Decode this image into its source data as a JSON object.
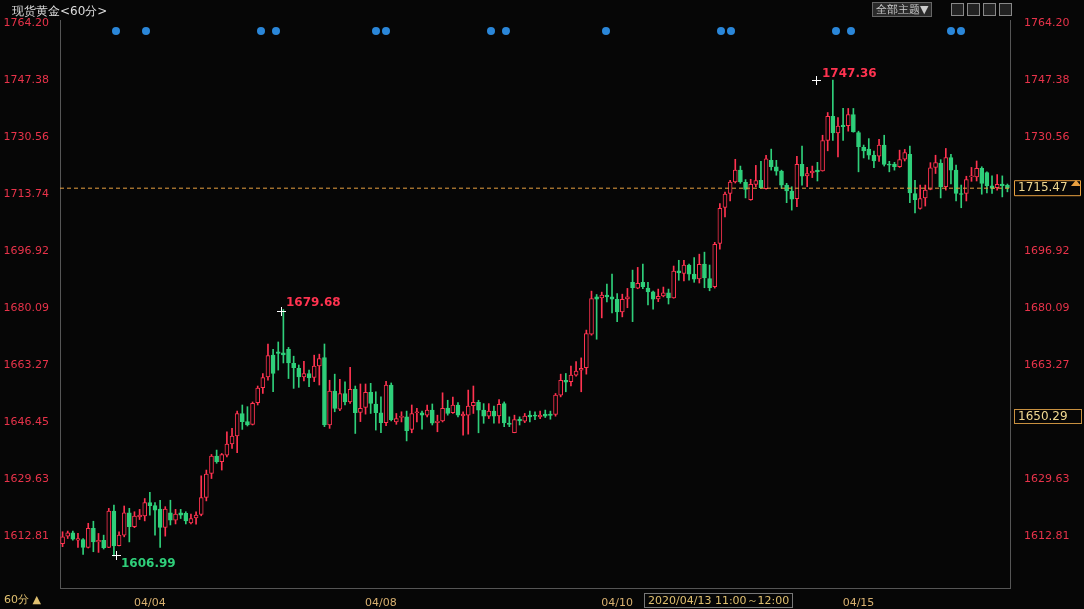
{
  "chart_data": {
    "type": "candlestick",
    "title": "现货黄金<60分>",
    "categories": [
      null,
      null,
      null,
      null,
      null,
      null,
      null,
      null,
      null,
      null,
      null,
      null,
      null,
      null,
      null,
      null,
      null,
      "04/04",
      null,
      null,
      null,
      null,
      null,
      null,
      null,
      null,
      null,
      null,
      null,
      null,
      null,
      null,
      null,
      null,
      null,
      null,
      null,
      null,
      null,
      null,
      null,
      null,
      null,
      null,
      null,
      null,
      null,
      null,
      null,
      null,
      null,
      null,
      null,
      null,
      null,
      null,
      null,
      null,
      null,
      null,
      null,
      null,
      "04/08",
      null,
      null,
      null,
      null,
      null,
      null,
      null,
      null,
      null,
      null,
      null,
      null,
      null,
      null,
      null,
      null,
      null,
      null,
      null,
      null,
      null,
      null,
      null,
      null,
      null,
      null,
      null,
      null,
      null,
      null,
      null,
      null,
      null,
      null,
      null,
      null,
      null,
      null,
      null,
      null,
      null,
      null,
      null,
      null,
      null,
      "04/10",
      null,
      null,
      null,
      null,
      null,
      null,
      null,
      null,
      null,
      null,
      null,
      null,
      null,
      null,
      null,
      null,
      null,
      null,
      null,
      null,
      null,
      null,
      null,
      null,
      null,
      null,
      null,
      null,
      null,
      null,
      null,
      null,
      null,
      null,
      null,
      null,
      null,
      null,
      null,
      null,
      null,
      null,
      null,
      null,
      null,
      null,
      "04/15",
      null,
      null,
      null,
      null,
      null,
      null,
      null,
      null,
      null,
      null,
      null,
      null,
      null,
      null,
      null,
      null,
      null,
      null,
      null,
      null,
      null,
      null,
      null,
      null,
      null,
      null,
      null,
      null,
      null
    ],
    "ohlc": [
      [
        1610.6,
        1614.1,
        1609.7,
        1612.6
      ],
      [
        1612.8,
        1614.3,
        1612.1,
        1613.8
      ],
      [
        1613.8,
        1614.3,
        1611.6,
        1611.9
      ],
      [
        1611.6,
        1613.6,
        1609.5,
        1612.1
      ],
      [
        1611.8,
        1612.1,
        1607.4,
        1609.5
      ],
      [
        1609.5,
        1616.6,
        1609.3,
        1615.1
      ],
      [
        1615.1,
        1617.2,
        1608.2,
        1611.1
      ],
      [
        1611.1,
        1613.6,
        1608.0,
        1611.6
      ],
      [
        1611.6,
        1613.1,
        1609.0,
        1609.4
      ],
      [
        1609.5,
        1621.0,
        1609.4,
        1620.2
      ],
      [
        1620.2,
        1622.0,
        1606.99,
        1609.9
      ],
      [
        1610.0,
        1614.1,
        1609.9,
        1613.1
      ],
      [
        1613.1,
        1621.7,
        1612.6,
        1619.7
      ],
      [
        1619.7,
        1621.0,
        1611.1,
        1615.6
      ],
      [
        1615.6,
        1620.0,
        1615.3,
        1618.7
      ],
      [
        1618.5,
        1620.7,
        1617.7,
        1619.0
      ],
      [
        1618.8,
        1623.9,
        1617.3,
        1622.7
      ],
      [
        1622.7,
        1625.7,
        1619.0,
        1621.8
      ],
      [
        1621.8,
        1622.7,
        1613.1,
        1620.5
      ],
      [
        1620.8,
        1623.4,
        1609.5,
        1615.4
      ],
      [
        1615.4,
        1621.5,
        1612.8,
        1620.8
      ],
      [
        1619.7,
        1623.4,
        1616.1,
        1617.5
      ],
      [
        1617.5,
        1620.7,
        1616.4,
        1619.3
      ],
      [
        1619.7,
        1620.7,
        1618.0,
        1619.0
      ],
      [
        1619.5,
        1620.0,
        1616.4,
        1617.3
      ],
      [
        1616.7,
        1619.3,
        1616.4,
        1618.0
      ],
      [
        1618.2,
        1620.0,
        1616.3,
        1619.0
      ],
      [
        1619.2,
        1630.6,
        1618.8,
        1624.2
      ],
      [
        1624.2,
        1632.3,
        1623.2,
        1631.1
      ],
      [
        1631.3,
        1636.9,
        1629.8,
        1636.4
      ],
      [
        1636.4,
        1638.2,
        1634.3,
        1634.8
      ],
      [
        1634.8,
        1637.2,
        1632.3,
        1636.9
      ],
      [
        1636.7,
        1643.6,
        1636.2,
        1640.0
      ],
      [
        1640.0,
        1644.6,
        1638.7,
        1642.3
      ],
      [
        1642.4,
        1649.7,
        1637.4,
        1649.0
      ],
      [
        1649.0,
        1651.5,
        1644.3,
        1646.6
      ],
      [
        1646.6,
        1651.0,
        1645.3,
        1645.6
      ],
      [
        1645.8,
        1652.4,
        1645.6,
        1652.0
      ],
      [
        1652.2,
        1657.1,
        1651.5,
        1656.5
      ],
      [
        1656.6,
        1660.8,
        1654.9,
        1659.6
      ],
      [
        1659.8,
        1669.5,
        1658.8,
        1666.1
      ],
      [
        1666.2,
        1667.9,
        1655.4,
        1660.8
      ],
      [
        1667.2,
        1670.1,
        1661.8,
        1666.7
      ],
      [
        1666.9,
        1679.68,
        1663.9,
        1666.3
      ],
      [
        1667.9,
        1668.5,
        1659.3,
        1663.9
      ],
      [
        1663.8,
        1665.9,
        1656.4,
        1662.5
      ],
      [
        1662.3,
        1663.3,
        1656.7,
        1659.8
      ],
      [
        1659.8,
        1664.4,
        1658.6,
        1660.8
      ],
      [
        1660.8,
        1661.8,
        1656.9,
        1659.5
      ],
      [
        1659.6,
        1666.2,
        1658.4,
        1663.0
      ],
      [
        1663.0,
        1666.5,
        1657.4,
        1665.2
      ],
      [
        1665.5,
        1669.5,
        1645.1,
        1645.6
      ],
      [
        1645.6,
        1658.8,
        1644.6,
        1655.6
      ],
      [
        1655.6,
        1660.6,
        1649.5,
        1650.5
      ],
      [
        1650.3,
        1659.1,
        1649.8,
        1654.9
      ],
      [
        1654.9,
        1658.3,
        1651.5,
        1652.4
      ],
      [
        1652.4,
        1662.6,
        1652.0,
        1656.1
      ],
      [
        1656.2,
        1657.1,
        1643.1,
        1649.2
      ],
      [
        1649.3,
        1657.7,
        1646.6,
        1650.5
      ],
      [
        1650.8,
        1657.7,
        1648.8,
        1655.2
      ],
      [
        1655.2,
        1657.9,
        1649.0,
        1652.0
      ],
      [
        1651.8,
        1655.4,
        1644.1,
        1649.2
      ],
      [
        1649.2,
        1653.9,
        1643.3,
        1646.3
      ],
      [
        1646.3,
        1658.5,
        1645.4,
        1657.4
      ],
      [
        1657.4,
        1658.0,
        1646.8,
        1647.2
      ],
      [
        1646.5,
        1649.0,
        1645.8,
        1647.5
      ],
      [
        1647.8,
        1649.5,
        1646.5,
        1648.2
      ],
      [
        1648.0,
        1649.7,
        1640.9,
        1643.9
      ],
      [
        1644.3,
        1651.5,
        1643.3,
        1649.0
      ],
      [
        1649.2,
        1650.5,
        1646.5,
        1649.4
      ],
      [
        1649.2,
        1649.7,
        1644.4,
        1648.5
      ],
      [
        1648.5,
        1651.5,
        1648.0,
        1650.0
      ],
      [
        1650.0,
        1651.8,
        1645.6,
        1646.1
      ],
      [
        1646.3,
        1648.5,
        1643.6,
        1646.7
      ],
      [
        1646.8,
        1655.1,
        1646.5,
        1650.5
      ],
      [
        1650.6,
        1652.9,
        1648.5,
        1649.0
      ],
      [
        1649.2,
        1653.8,
        1649.0,
        1651.5
      ],
      [
        1651.5,
        1652.2,
        1648.0,
        1648.5
      ],
      [
        1648.3,
        1649.5,
        1642.6,
        1648.8
      ],
      [
        1648.5,
        1655.9,
        1642.9,
        1651.2
      ],
      [
        1651.3,
        1657.1,
        1649.0,
        1652.3
      ],
      [
        1652.3,
        1652.9,
        1643.3,
        1650.0
      ],
      [
        1650.0,
        1651.9,
        1646.1,
        1648.2
      ],
      [
        1648.2,
        1651.9,
        1647.5,
        1649.7
      ],
      [
        1649.7,
        1651.2,
        1646.1,
        1648.2
      ],
      [
        1648.3,
        1653.1,
        1646.1,
        1651.7
      ],
      [
        1651.9,
        1652.4,
        1645.1,
        1646.2
      ],
      [
        1646.2,
        1648.0,
        1645.1,
        1645.8
      ],
      [
        1643.3,
        1648.5,
        1643.3,
        1647.2
      ],
      [
        1647.3,
        1648.0,
        1645.6,
        1646.8
      ],
      [
        1646.7,
        1649.0,
        1646.3,
        1648.2
      ],
      [
        1648.5,
        1649.7,
        1646.5,
        1648.0
      ],
      [
        1648.5,
        1649.5,
        1647.2,
        1648.2
      ],
      [
        1648.0,
        1649.7,
        1647.5,
        1648.5
      ],
      [
        1648.8,
        1650.0,
        1647.8,
        1648.2
      ],
      [
        1648.8,
        1649.7,
        1647.3,
        1648.4
      ],
      [
        1648.7,
        1654.9,
        1648.2,
        1654.4
      ],
      [
        1654.4,
        1660.6,
        1653.9,
        1658.8
      ],
      [
        1658.8,
        1660.8,
        1655.4,
        1658.2
      ],
      [
        1658.4,
        1663.0,
        1657.1,
        1660.3
      ],
      [
        1660.3,
        1664.3,
        1660.0,
        1661.5
      ],
      [
        1661.8,
        1665.4,
        1655.4,
        1662.3
      ],
      [
        1662.5,
        1673.6,
        1660.6,
        1672.6
      ],
      [
        1672.4,
        1685.1,
        1672.1,
        1682.9
      ],
      [
        1683.4,
        1684.1,
        1670.9,
        1682.7
      ],
      [
        1683.1,
        1684.8,
        1677.2,
        1683.9
      ],
      [
        1683.9,
        1687.2,
        1681.9,
        1683.4
      ],
      [
        1683.4,
        1690.1,
        1678.7,
        1682.7
      ],
      [
        1682.7,
        1684.4,
        1676.1,
        1679.0
      ],
      [
        1679.0,
        1684.2,
        1677.5,
        1682.7
      ],
      [
        1682.8,
        1685.9,
        1680.2,
        1683.4
      ],
      [
        1687.7,
        1691.3,
        1676.1,
        1686.1
      ],
      [
        1686.0,
        1692.1,
        1685.8,
        1687.4
      ],
      [
        1687.7,
        1693.1,
        1685.8,
        1686.4
      ],
      [
        1686.0,
        1687.7,
        1681.0,
        1684.9
      ],
      [
        1684.9,
        1685.1,
        1679.8,
        1682.7
      ],
      [
        1682.8,
        1685.7,
        1682.0,
        1683.6
      ],
      [
        1683.7,
        1686.3,
        1683.4,
        1684.6
      ],
      [
        1684.6,
        1685.7,
        1681.3,
        1683.1
      ],
      [
        1683.1,
        1692.5,
        1683.0,
        1691.0
      ],
      [
        1691.1,
        1694.2,
        1688.3,
        1690.5
      ],
      [
        1690.3,
        1694.2,
        1688.1,
        1692.8
      ],
      [
        1692.8,
        1693.1,
        1688.3,
        1690.1
      ],
      [
        1690.1,
        1695.0,
        1687.7,
        1688.6
      ],
      [
        1688.7,
        1696.0,
        1687.5,
        1693.0
      ],
      [
        1693.1,
        1696.6,
        1686.1,
        1689.0
      ],
      [
        1688.8,
        1692.8,
        1685.2,
        1686.1
      ],
      [
        1686.4,
        1699.5,
        1686.0,
        1698.9
      ],
      [
        1699.2,
        1710.9,
        1697.5,
        1709.5
      ],
      [
        1709.8,
        1714.3,
        1707.0,
        1713.7
      ],
      [
        1713.9,
        1717.8,
        1711.7,
        1717.3
      ],
      [
        1717.3,
        1724.0,
        1717.0,
        1720.8
      ],
      [
        1720.8,
        1722.0,
        1716.9,
        1717.3
      ],
      [
        1717.2,
        1718.0,
        1712.6,
        1715.1
      ],
      [
        1712.1,
        1718.1,
        1711.9,
        1716.6
      ],
      [
        1716.6,
        1722.2,
        1715.9,
        1717.7
      ],
      [
        1717.8,
        1723.4,
        1715.4,
        1715.6
      ],
      [
        1715.3,
        1725.2,
        1715.2,
        1724.1
      ],
      [
        1723.7,
        1727.0,
        1720.8,
        1721.8
      ],
      [
        1721.8,
        1723.7,
        1719.3,
        1720.5
      ],
      [
        1720.5,
        1720.8,
        1715.4,
        1716.4
      ],
      [
        1716.4,
        1716.9,
        1711.2,
        1714.7
      ],
      [
        1714.6,
        1715.9,
        1709.0,
        1712.2
      ],
      [
        1712.4,
        1724.9,
        1710.0,
        1722.5
      ],
      [
        1722.5,
        1727.9,
        1716.4,
        1719.0
      ],
      [
        1719.1,
        1721.6,
        1715.9,
        1719.8
      ],
      [
        1720.0,
        1722.0,
        1718.6,
        1720.5
      ],
      [
        1720.8,
        1723.1,
        1717.6,
        1720.3
      ],
      [
        1720.6,
        1731.1,
        1720.5,
        1729.5
      ],
      [
        1729.6,
        1737.8,
        1726.5,
        1736.7
      ],
      [
        1736.7,
        1747.36,
        1729.6,
        1731.8
      ],
      [
        1731.8,
        1736.3,
        1724.7,
        1733.8
      ],
      [
        1734.1,
        1739.0,
        1729.6,
        1733.6
      ],
      [
        1733.9,
        1739.0,
        1732.3,
        1737.2
      ],
      [
        1737.2,
        1739.0,
        1732.0,
        1732.1
      ],
      [
        1731.9,
        1732.3,
        1720.3,
        1727.7
      ],
      [
        1727.5,
        1728.2,
        1724.4,
        1726.5
      ],
      [
        1727.0,
        1730.1,
        1724.0,
        1725.2
      ],
      [
        1725.2,
        1726.4,
        1721.5,
        1723.5
      ],
      [
        1724.9,
        1729.9,
        1723.4,
        1728.2
      ],
      [
        1728.2,
        1731.1,
        1722.0,
        1722.5
      ],
      [
        1722.6,
        1723.4,
        1720.3,
        1722.3
      ],
      [
        1722.6,
        1723.1,
        1720.8,
        1721.8
      ],
      [
        1721.8,
        1726.7,
        1721.6,
        1723.9
      ],
      [
        1724.0,
        1726.9,
        1723.5,
        1726.0
      ],
      [
        1725.5,
        1727.9,
        1711.2,
        1714.1
      ],
      [
        1713.9,
        1717.8,
        1708.2,
        1712.1
      ],
      [
        1709.5,
        1716.4,
        1709.3,
        1712.4
      ],
      [
        1712.6,
        1716.4,
        1710.2,
        1714.9
      ],
      [
        1715.1,
        1723.0,
        1715.0,
        1721.5
      ],
      [
        1721.6,
        1725.2,
        1719.8,
        1723.0
      ],
      [
        1722.9,
        1723.9,
        1712.6,
        1715.9
      ],
      [
        1715.9,
        1727.2,
        1714.9,
        1724.5
      ],
      [
        1724.5,
        1725.5,
        1716.7,
        1720.8
      ],
      [
        1720.8,
        1722.3,
        1711.7,
        1713.9
      ],
      [
        1713.9,
        1716.4,
        1709.7,
        1713.6
      ],
      [
        1713.9,
        1719.0,
        1711.7,
        1718.0
      ],
      [
        1718.8,
        1721.6,
        1717.5,
        1719.1
      ],
      [
        1718.8,
        1723.5,
        1717.6,
        1721.3
      ],
      [
        1721.3,
        1721.8,
        1713.7,
        1716.9
      ],
      [
        1720.1,
        1720.3,
        1714.1,
        1716.2
      ],
      [
        1716.2,
        1719.1,
        1713.9,
        1715.4
      ],
      [
        1715.6,
        1719.5,
        1714.9,
        1716.6
      ],
      [
        1716.7,
        1719.1,
        1712.9,
        1716.2
      ],
      [
        1716.4,
        1716.7,
        1714.4,
        1715.47
      ]
    ],
    "colors": [
      "#ff3350",
      "#ff3350",
      "#2fcf7a",
      "#ff3350",
      "#2fcf7a",
      "#ff3350",
      "#2fcf7a",
      "#ff3350",
      "#2fcf7a",
      "#ff3350",
      "#2fcf7a",
      "#ff3350",
      "#ff3350",
      "#2fcf7a",
      "#ff3350",
      "#ff3350",
      "#ff3350",
      "#2fcf7a",
      "#2fcf7a",
      "#2fcf7a",
      "#ff3350",
      "#2fcf7a",
      "#ff3350",
      "#2fcf7a",
      "#2fcf7a",
      "#ff3350",
      "#ff3350",
      "#ff3350",
      "#ff3350",
      "#ff3350",
      "#2fcf7a",
      "#ff3350",
      "#ff3350",
      "#ff3350",
      "#ff3350",
      "#2fcf7a",
      "#2fcf7a",
      "#ff3350",
      "#ff3350",
      "#ff3350",
      "#ff3350",
      "#2fcf7a",
      "#2fcf7a",
      "#2fcf7a",
      "#2fcf7a",
      "#2fcf7a",
      "#2fcf7a",
      "#ff3350",
      "#2fcf7a",
      "#ff3350",
      "#ff3350",
      "#2fcf7a",
      "#ff3350",
      "#2fcf7a",
      "#ff3350",
      "#2fcf7a",
      "#ff3350",
      "#2fcf7a",
      "#ff3350",
      "#ff3350",
      "#2fcf7a",
      "#2fcf7a",
      "#2fcf7a",
      "#ff3350",
      "#2fcf7a",
      "#ff3350",
      "#ff3350",
      "#2fcf7a",
      "#ff3350",
      "#ff3350",
      "#2fcf7a",
      "#ff3350",
      "#2fcf7a",
      "#ff3350",
      "#ff3350",
      "#2fcf7a",
      "#ff3350",
      "#2fcf7a",
      "#ff3350",
      "#ff3350",
      "#ff3350",
      "#2fcf7a",
      "#2fcf7a",
      "#ff3350",
      "#2fcf7a",
      "#ff3350",
      "#2fcf7a",
      "#2fcf7a",
      "#ff3350",
      "#2fcf7a",
      "#ff3350",
      "#2fcf7a",
      "#2fcf7a",
      "#ff3350",
      "#2fcf7a",
      "#2fcf7a",
      "#ff3350",
      "#ff3350",
      "#2fcf7a",
      "#ff3350",
      "#ff3350",
      "#ff3350",
      "#ff3350",
      "#ff3350",
      "#2fcf7a",
      "#ff3350",
      "#2fcf7a",
      "#2fcf7a",
      "#2fcf7a",
      "#ff3350",
      "#ff3350",
      "#2fcf7a",
      "#ff3350",
      "#2fcf7a",
      "#2fcf7a",
      "#2fcf7a",
      "#ff3350",
      "#ff3350",
      "#2fcf7a",
      "#ff3350",
      "#2fcf7a",
      "#ff3350",
      "#2fcf7a",
      "#2fcf7a",
      "#ff3350",
      "#2fcf7a",
      "#2fcf7a",
      "#ff3350",
      "#ff3350",
      "#ff3350",
      "#ff3350",
      "#ff3350",
      "#2fcf7a",
      "#2fcf7a",
      "#ff3350",
      "#ff3350",
      "#2fcf7a",
      "#ff3350",
      "#2fcf7a",
      "#2fcf7a",
      "#2fcf7a",
      "#2fcf7a",
      "#2fcf7a",
      "#ff3350",
      "#2fcf7a",
      "#ff3350",
      "#ff3350",
      "#2fcf7a",
      "#ff3350",
      "#ff3350",
      "#2fcf7a",
      "#ff3350",
      "#2fcf7a",
      "#ff3350",
      "#2fcf7a",
      "#2fcf7a",
      "#2fcf7a",
      "#2fcf7a",
      "#2fcf7a",
      "#ff3350",
      "#2fcf7a",
      "#2fcf7a",
      "#2fcf7a",
      "#ff3350",
      "#ff3350",
      "#2fcf7a",
      "#2fcf7a",
      "#ff3350",
      "#ff3350",
      "#ff3350",
      "#ff3350",
      "#2fcf7a",
      "#ff3350",
      "#2fcf7a",
      "#2fcf7a",
      "#2fcf7a",
      "#ff3350",
      "#ff3350",
      "#ff3350",
      "#2fcf7a",
      "#2fcf7a",
      "#2fcf7a",
      "#ff3350",
      "#2fcf7a",
      "#2fcf7a"
    ],
    "ylim": [
      1597.5,
      1765.1
    ],
    "yticks": [
      1612.81,
      1629.63,
      1646.45,
      1663.27,
      1680.09,
      1696.92,
      1713.74,
      1730.56,
      1747.38,
      {
        "value": 1764.2,
        "label": "1764.20"
      }
    ],
    "y2lim": [
      1597.5,
      1765.1
    ],
    "y2ticks": [
      1612.81,
      1629.63,
      1663.27,
      1680.09,
      1696.92,
      1730.56,
      1747.38,
      {
        "value": 1764.2,
        "label": "1764.20"
      }
    ],
    "ref_lines": [
      {
        "axis": "y",
        "value": 1715.47,
        "label": "1715.47",
        "color": "#e8a040",
        "line_style": "dashed"
      }
    ],
    "annotations": [
      "60分 ▲",
      "全部主题▼",
      "2020/04/13 11:00～12:00",
      "1650.29",
      "1747.36",
      "1679.68",
      "1606.99"
    ],
    "grid": false,
    "legend": false
  }
}
